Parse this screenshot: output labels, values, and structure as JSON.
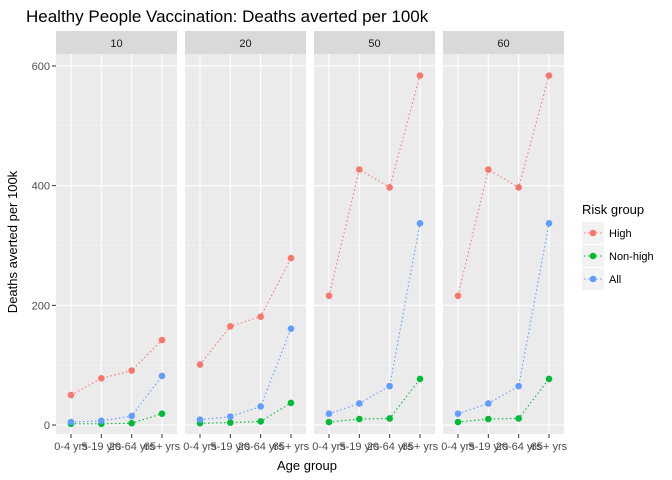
{
  "chart_data": {
    "type": "line",
    "title": "Healthy People Vaccination: Deaths averted per 100k",
    "xlabel": "Age group",
    "ylabel": "Deaths averted per 100k",
    "categories": [
      "0-4 yrs",
      "5-19 yrs",
      "20-64 yrs",
      "65+ yrs"
    ],
    "ylim": [
      -15,
      620
    ],
    "yticks": [
      0,
      200,
      400,
      600
    ],
    "legend": {
      "title": "Risk group",
      "placement": "right"
    },
    "colors": {
      "High": "#F8766D",
      "Non-high": "#00BA38",
      "All": "#619CFF"
    },
    "facets": [
      {
        "label": "10",
        "series": [
          {
            "name": "High",
            "values": [
              50,
              78,
              91,
              142
            ]
          },
          {
            "name": "Non-high",
            "values": [
              2,
              2,
              3,
              19
            ]
          },
          {
            "name": "All",
            "values": [
              5,
              7,
              15,
              82
            ]
          }
        ]
      },
      {
        "label": "20",
        "series": [
          {
            "name": "High",
            "values": [
              101,
              165,
              181,
              279
            ]
          },
          {
            "name": "Non-high",
            "values": [
              3,
              4,
              6,
              37
            ]
          },
          {
            "name": "All",
            "values": [
              9,
              14,
              31,
              161
            ]
          }
        ]
      },
      {
        "label": "50",
        "series": [
          {
            "name": "High",
            "values": [
              216,
              427,
              397,
              584
            ]
          },
          {
            "name": "Non-high",
            "values": [
              5,
              10,
              11,
              77
            ]
          },
          {
            "name": "All",
            "values": [
              19,
              36,
              65,
              337
            ]
          }
        ]
      },
      {
        "label": "60",
        "series": [
          {
            "name": "High",
            "values": [
              216,
              427,
              397,
              584
            ]
          },
          {
            "name": "Non-high",
            "values": [
              5,
              10,
              11,
              77
            ]
          },
          {
            "name": "All",
            "values": [
              19,
              36,
              65,
              337
            ]
          }
        ]
      }
    ]
  }
}
